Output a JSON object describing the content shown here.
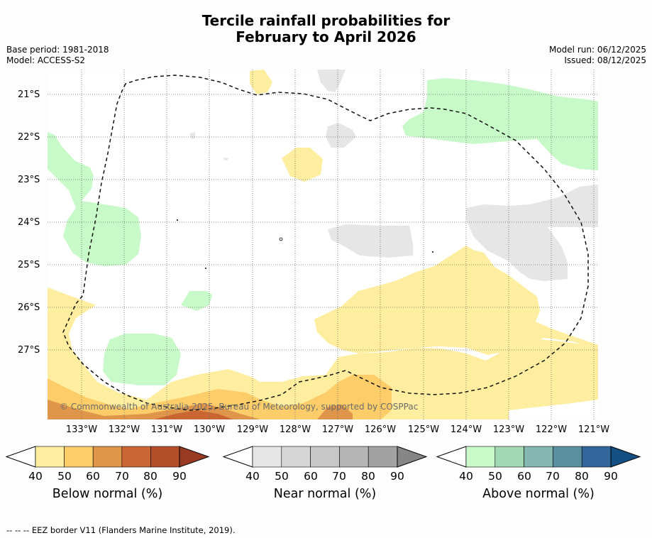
{
  "title": {
    "line1": "Tercile rainfall probabilities for",
    "line2": "February to April 2026"
  },
  "meta_left": {
    "base_period": "Base period: 1981-2018",
    "model": "Model: ACCESS-S2"
  },
  "meta_right": {
    "model_run": "Model run: 06/12/2025",
    "issued": "Issued: 08/12/2025"
  },
  "map": {
    "lat_labels": [
      "21°S",
      "22°S",
      "23°S",
      "24°S",
      "25°S",
      "26°S",
      "27°S"
    ],
    "lon_labels": [
      "133°W",
      "132°W",
      "131°W",
      "130°W",
      "129°W",
      "128°W",
      "127°W",
      "126°W",
      "125°W",
      "124°W",
      "123°W",
      "122°W",
      "121°W"
    ],
    "copyright": "© Commonwealth of Australia 2025, Bureau of Meteorology, supported by COSPPac"
  },
  "colorbars": [
    {
      "title": "Below normal (%)",
      "ticks": [
        "40",
        "50",
        "60",
        "70",
        "80",
        "90"
      ],
      "colors": [
        "#ffeea0",
        "#fdcd6a",
        "#e0964a",
        "#ca6634",
        "#b34e2a",
        "#993b22"
      ]
    },
    {
      "title": "Near normal (%)",
      "ticks": [
        "40",
        "50",
        "60",
        "70",
        "80",
        "90"
      ],
      "colors": [
        "#e6e6e6",
        "#d6d6d6",
        "#c7c7c7",
        "#b5b5b5",
        "#a2a2a2",
        "#868686"
      ]
    },
    {
      "title": "Above normal (%)",
      "ticks": [
        "40",
        "50",
        "60",
        "70",
        "80",
        "90"
      ],
      "colors": [
        "#c8f9c8",
        "#a3d9b5",
        "#83b7b0",
        "#5a91a0",
        "#33669a",
        "#134f83"
      ]
    }
  ],
  "footnote": "--  --  -- EEZ border V11 (Flanders Marine Institute, 2019)."
}
